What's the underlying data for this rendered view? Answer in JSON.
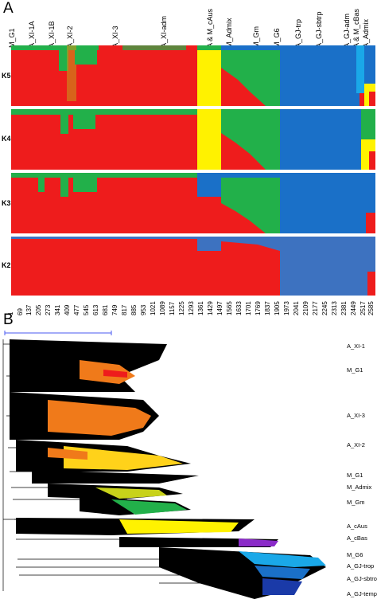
{
  "panel_a": {
    "letter": "A"
  },
  "panel_b": {
    "letter": "B"
  },
  "groups": [
    "M_G1",
    "A_XI-1A",
    "A_XI-1B",
    "A_XI-2",
    "A_XI-3",
    "A_XI-adm",
    "A & M_cAus",
    "M_Admix",
    "M_Gm",
    "M_G6",
    "A_GJ-trp",
    "A_GJ-sbtrp",
    "A_GJ-adm",
    "A & M_cBas",
    "A_Admix"
  ],
  "k_rows": [
    "K5",
    "K4",
    "K3",
    "K2"
  ],
  "x_ticks": [
    "1",
    "69",
    "137",
    "205",
    "273",
    "341",
    "409",
    "477",
    "545",
    "613",
    "681",
    "749",
    "817",
    "885",
    "953",
    "1021",
    "1089",
    "1157",
    "1225",
    "1293",
    "1361",
    "1429",
    "1497",
    "1565",
    "1633",
    "1701",
    "1769",
    "1837",
    "1905",
    "1973",
    "2041",
    "2109",
    "2177",
    "2245",
    "2313",
    "2381",
    "2449",
    "2517",
    "2585"
  ],
  "colors": {
    "red": "#ee1c1c",
    "green": "#22b04a",
    "blue": "#1a70c8",
    "steel": "#3d72c0",
    "yellow": "#fff200",
    "cyan": "#1aa8e8",
    "orange": "#f07a1a"
  },
  "tree_labels": [
    "A_XI-1",
    "M_G1",
    "A_XI-3",
    "A_XI-2",
    "M_G1",
    "M_Admix",
    "M_Gm",
    "A_cAus",
    "A_cBas",
    "M_G6",
    "A_GJ-trop",
    "A_GJ-sbtrop",
    "A_GJ-temp"
  ]
}
